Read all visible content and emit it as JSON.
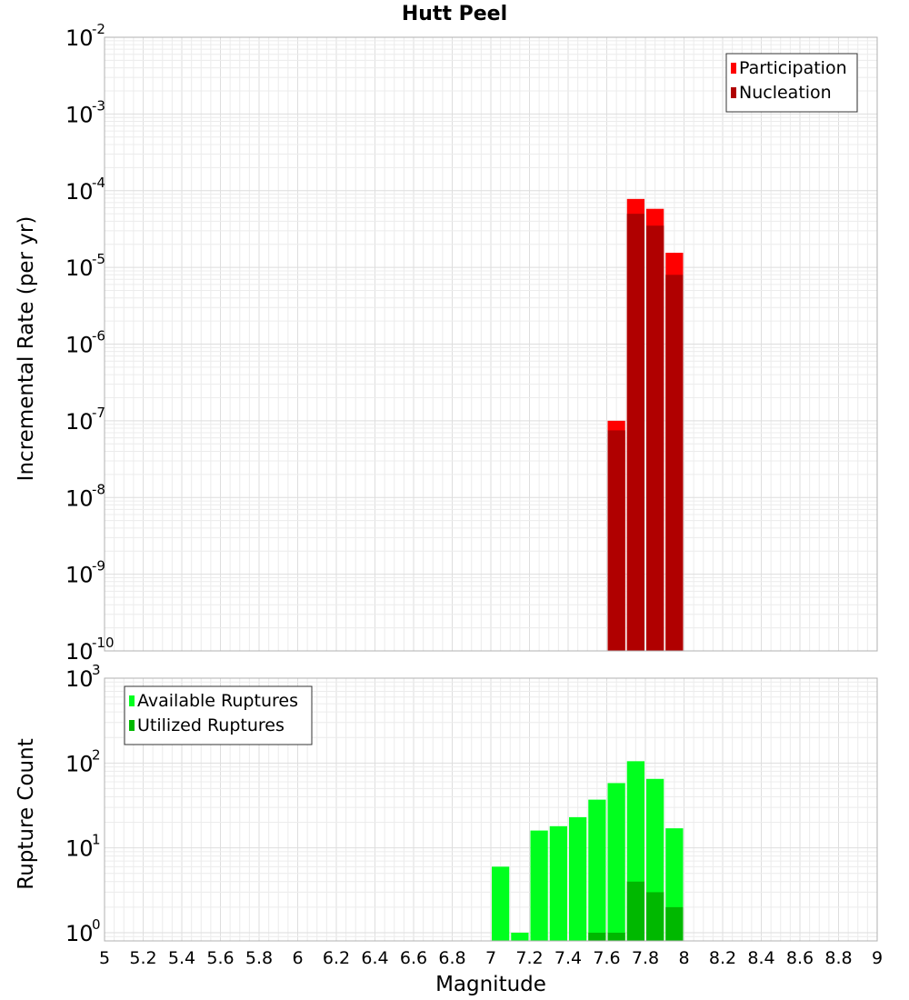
{
  "title": "Hutt Peel",
  "xlabel": "Magnitude",
  "chart_data": [
    {
      "type": "bar",
      "title": "Hutt Peel",
      "xlabel": "Magnitude",
      "ylabel": "Incremental Rate (per yr)",
      "yscale": "log",
      "ylim": [
        1e-10,
        0.01
      ],
      "xlim": [
        5,
        9
      ],
      "grid": true,
      "legend_position": "top-right",
      "x": [
        7.65,
        7.75,
        7.85,
        7.95
      ],
      "series": [
        {
          "name": "Participation",
          "color": "#ff0000",
          "values": [
            1e-07,
            7.8e-05,
            5.8e-05,
            1.55e-05
          ]
        },
        {
          "name": "Nucleation",
          "color": "#b00000",
          "values": [
            7.5e-08,
            5e-05,
            3.5e-05,
            8e-06
          ]
        }
      ]
    },
    {
      "type": "bar",
      "ylabel": "Rupture Count",
      "xlabel": "Magnitude",
      "yscale": "log",
      "ylim": [
        0.8,
        1000
      ],
      "xlim": [
        5,
        9
      ],
      "grid": true,
      "legend_position": "top-left",
      "x": [
        7.05,
        7.15,
        7.25,
        7.35,
        7.45,
        7.55,
        7.65,
        7.75,
        7.85,
        7.95
      ],
      "series": [
        {
          "name": "Available Ruptures",
          "color": "#00ff1e",
          "values": [
            6,
            1,
            16,
            18,
            23,
            37,
            58,
            105,
            65,
            17
          ]
        },
        {
          "name": "Utilized Ruptures",
          "color": "#00b800",
          "values": [
            0,
            0,
            0,
            0,
            0,
            1,
            1,
            4,
            3,
            2
          ]
        }
      ]
    }
  ],
  "x_ticks": [
    "5",
    "5.2",
    "5.4",
    "5.6",
    "5.8",
    "6",
    "6.2",
    "6.4",
    "6.6",
    "6.8",
    "7",
    "7.2",
    "7.4",
    "7.6",
    "7.8",
    "8",
    "8.2",
    "8.4",
    "8.6",
    "8.8",
    "9"
  ],
  "top_y_ticks": [
    {
      "base": "10",
      "exp": "-10"
    },
    {
      "base": "10",
      "exp": "-9"
    },
    {
      "base": "10",
      "exp": "-8"
    },
    {
      "base": "10",
      "exp": "-7"
    },
    {
      "base": "10",
      "exp": "-6"
    },
    {
      "base": "10",
      "exp": "-5"
    },
    {
      "base": "10",
      "exp": "-4"
    },
    {
      "base": "10",
      "exp": "-3"
    },
    {
      "base": "10",
      "exp": "-2"
    }
  ],
  "bottom_y_ticks": [
    {
      "base": "10",
      "exp": "0"
    },
    {
      "base": "10",
      "exp": "1"
    },
    {
      "base": "10",
      "exp": "2"
    },
    {
      "base": "10",
      "exp": "3"
    }
  ]
}
